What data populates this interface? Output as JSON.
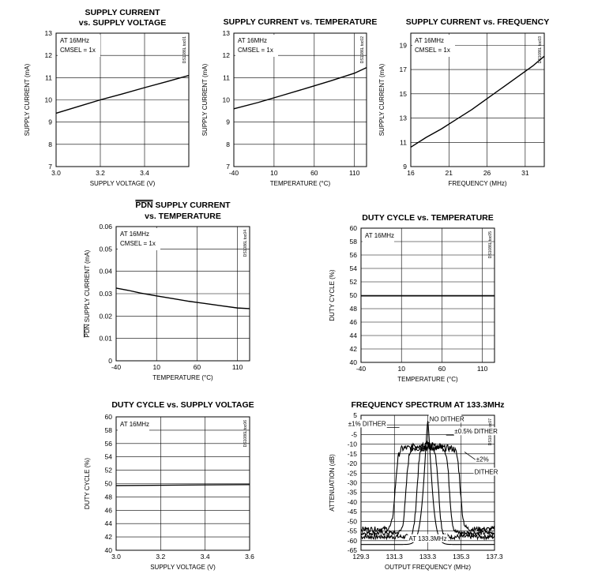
{
  "chart_data": [
    {
      "id": "c1",
      "type": "line",
      "title": [
        "SUPPLY CURRENT",
        "vs. SUPPLY VOLTAGE"
      ],
      "xlabel": "SUPPLY VOLTAGE (V)",
      "ylabel": "SUPPLY CURRENT (mA)",
      "xlim": [
        3.0,
        3.6
      ],
      "ylim": [
        7,
        13
      ],
      "xticks": [
        3.0,
        3.2,
        3.4
      ],
      "xtick_labels": [
        "3.0",
        "3.2",
        "3.4"
      ],
      "yticks": [
        7,
        8,
        9,
        10,
        11,
        12,
        13
      ],
      "ytick_labels": [
        "7",
        "8",
        "9",
        "10",
        "11",
        "12",
        "13"
      ],
      "grid": true,
      "notes": [
        "AT 16MHz",
        "CMSEL = 1x"
      ],
      "code": "DS1086L toc01",
      "series": [
        {
          "name": "supply current",
          "x": [
            3.0,
            3.1,
            3.2,
            3.3,
            3.4,
            3.5,
            3.6
          ],
          "y": [
            9.4,
            9.7,
            10.0,
            10.27,
            10.55,
            10.82,
            11.1
          ]
        }
      ]
    },
    {
      "id": "c2",
      "type": "line",
      "title": [
        "SUPPLY CURRENT vs. TEMPERATURE"
      ],
      "xlabel": "TEMPERATURE (°C)",
      "ylabel": "SUPPLY CURRENT (mA)",
      "xlim": [
        -40,
        125
      ],
      "ylim": [
        7,
        13
      ],
      "xticks": [
        -40,
        10,
        60,
        110
      ],
      "xtick_labels": [
        "-40",
        "10",
        "60",
        "110"
      ],
      "yticks": [
        7,
        8,
        9,
        10,
        11,
        12,
        13
      ],
      "ytick_labels": [
        "7",
        "8",
        "9",
        "10",
        "11",
        "12",
        "13"
      ],
      "grid": true,
      "notes": [
        "AT 16MHz",
        "CMSEL = 1x"
      ],
      "code": "DS1086L toc02",
      "series": [
        {
          "name": "supply current",
          "x": [
            -40,
            -10,
            20,
            50,
            80,
            110,
            125
          ],
          "y": [
            9.6,
            9.88,
            10.2,
            10.52,
            10.85,
            11.2,
            11.45
          ]
        }
      ]
    },
    {
      "id": "c3",
      "type": "line",
      "title": [
        "SUPPLY CURRENT vs. FREQUENCY"
      ],
      "xlabel": "FREQUENCY (MHz)",
      "ylabel": "SUPPLY CURRENT (mA)",
      "xlim": [
        16,
        33.5
      ],
      "ylim": [
        9,
        20
      ],
      "xticks": [
        16,
        21,
        26,
        31
      ],
      "xtick_labels": [
        "16",
        "21",
        "26",
        "31"
      ],
      "yticks": [
        9,
        11,
        13,
        15,
        17,
        19
      ],
      "ytick_labels": [
        "9",
        "11",
        "13",
        "15",
        "17",
        "19"
      ],
      "grid": true,
      "notes": [
        "AT 16MHz",
        "CMSEL = 1x"
      ],
      "code": "DS1086L toc03",
      "series": [
        {
          "name": "supply current",
          "x": [
            16,
            18,
            20,
            22,
            24,
            26,
            28,
            30,
            32,
            33.5
          ],
          "y": [
            10.6,
            11.4,
            12.1,
            12.9,
            13.7,
            14.6,
            15.5,
            16.4,
            17.3,
            18.1
          ]
        }
      ]
    },
    {
      "id": "c4",
      "type": "line",
      "title_over": "PDN",
      "title": [
        " SUPPLY CURRENT",
        "vs. TEMPERATURE"
      ],
      "xlabel": "TEMPERATURE (°C)",
      "ylabel_over": "PDN",
      "ylabel": " SUPPLY CURRENT (mA)",
      "xlim": [
        -40,
        125
      ],
      "ylim": [
        0,
        0.06
      ],
      "xticks": [
        -40,
        10,
        60,
        110
      ],
      "xtick_labels": [
        "-40",
        "10",
        "60",
        "110"
      ],
      "yticks": [
        0,
        0.01,
        0.02,
        0.03,
        0.04,
        0.05,
        0.06
      ],
      "ytick_labels": [
        "0",
        "0.01",
        "0.02",
        "0.03",
        "0.04",
        "0.05",
        "0.06"
      ],
      "grid": true,
      "notes": [
        "AT 16MHz",
        "CMSEL = 1x"
      ],
      "code": "DS1086L toc04",
      "series": [
        {
          "name": "PDN supply current",
          "x": [
            -40,
            -25,
            -10,
            10,
            30,
            50,
            70,
            90,
            110,
            125
          ],
          "y": [
            0.0325,
            0.0315,
            0.0303,
            0.029,
            0.0278,
            0.0266,
            0.0256,
            0.0246,
            0.0236,
            0.0233
          ]
        }
      ]
    },
    {
      "id": "c5",
      "type": "line",
      "title": [
        "DUTY CYCLE vs. TEMPERATURE"
      ],
      "xlabel": "TEMPERATURE (°C)",
      "ylabel": "DUTY CYCLE (%)",
      "xlim": [
        -40,
        125
      ],
      "ylim": [
        40,
        60
      ],
      "xticks": [
        -40,
        10,
        60,
        110
      ],
      "xtick_labels": [
        "-40",
        "10",
        "60",
        "110"
      ],
      "yticks": [
        40,
        42,
        44,
        46,
        48,
        50,
        52,
        54,
        56,
        58,
        60
      ],
      "ytick_labels": [
        "40",
        "42",
        "44",
        "46",
        "48",
        "50",
        "52",
        "54",
        "56",
        "58",
        "60"
      ],
      "grid": true,
      "notes": [
        "AT 16MHz"
      ],
      "code": "DS1086L toc05",
      "series": [
        {
          "name": "duty cycle",
          "x": [
            -40,
            125
          ],
          "y": [
            49.9,
            49.9
          ]
        }
      ]
    },
    {
      "id": "c6",
      "type": "line",
      "title": [
        "DUTY CYCLE vs. SUPPLY VOLTAGE"
      ],
      "xlabel": "SUPPLY VOLTAGE (V)",
      "ylabel": "DUTY CYCLE (%)",
      "xlim": [
        3.0,
        3.6
      ],
      "ylim": [
        40,
        60
      ],
      "xticks": [
        3.0,
        3.2,
        3.4,
        3.6
      ],
      "xtick_labels": [
        "3.0",
        "3.2",
        "3.4",
        "3.6"
      ],
      "yticks": [
        40,
        42,
        44,
        46,
        48,
        50,
        52,
        54,
        56,
        58,
        60
      ],
      "ytick_labels": [
        "40",
        "42",
        "44",
        "46",
        "48",
        "50",
        "52",
        "54",
        "56",
        "58",
        "60"
      ],
      "grid": true,
      "notes": [
        "AT 16MHz"
      ],
      "code": "DS1086L toc06",
      "series": [
        {
          "name": "duty cycle",
          "x": [
            3.0,
            3.6
          ],
          "y": [
            49.7,
            49.85
          ]
        }
      ]
    },
    {
      "id": "c7",
      "type": "line",
      "title": [
        "FREQUENCY SPECTRUM AT 133.3MHz"
      ],
      "xlabel": "OUTPUT FREQUENCY (MHz)",
      "ylabel": "ATTENUATION (dB)",
      "xlim": [
        129.3,
        137.3
      ],
      "ylim": [
        -65,
        5
      ],
      "xticks": [
        129.3,
        131.3,
        133.3,
        135.3,
        137.3
      ],
      "xtick_labels": [
        "129.3",
        "131.3",
        "133.3",
        "135.3",
        "137.3"
      ],
      "yticks": [
        5,
        0,
        -5,
        -10,
        -15,
        -20,
        -25,
        -30,
        -35,
        -40,
        -45,
        -50,
        -55,
        -60,
        -65
      ],
      "ytick_labels": [
        "5",
        "0",
        "-5",
        "-10",
        "-15",
        "-20",
        "-25",
        "-30",
        "-35",
        "-40",
        "-45",
        "-50",
        "-55",
        "-60",
        "-65"
      ],
      "grid": true,
      "code": "DS1086L toc07",
      "annotations": [
        "±1% DITHER",
        "NO DITHER",
        "±0.5% DITHER",
        "±2%",
        "DITHER",
        "AT 133.3MHz"
      ],
      "series": [
        {
          "name": "NO DITHER",
          "halfwidth": 0.1,
          "floor": -62,
          "plateau": -10
        },
        {
          "name": "±0.5% DITHER",
          "halfwidth": 0.65,
          "floor": -58,
          "plateau": -10
        },
        {
          "name": "±1% DITHER",
          "halfwidth": 1.3,
          "floor": -56,
          "plateau": -11
        },
        {
          "name": "±2% DITHER",
          "halfwidth": 1.95,
          "floor": -54,
          "plateau": -12
        }
      ]
    }
  ]
}
